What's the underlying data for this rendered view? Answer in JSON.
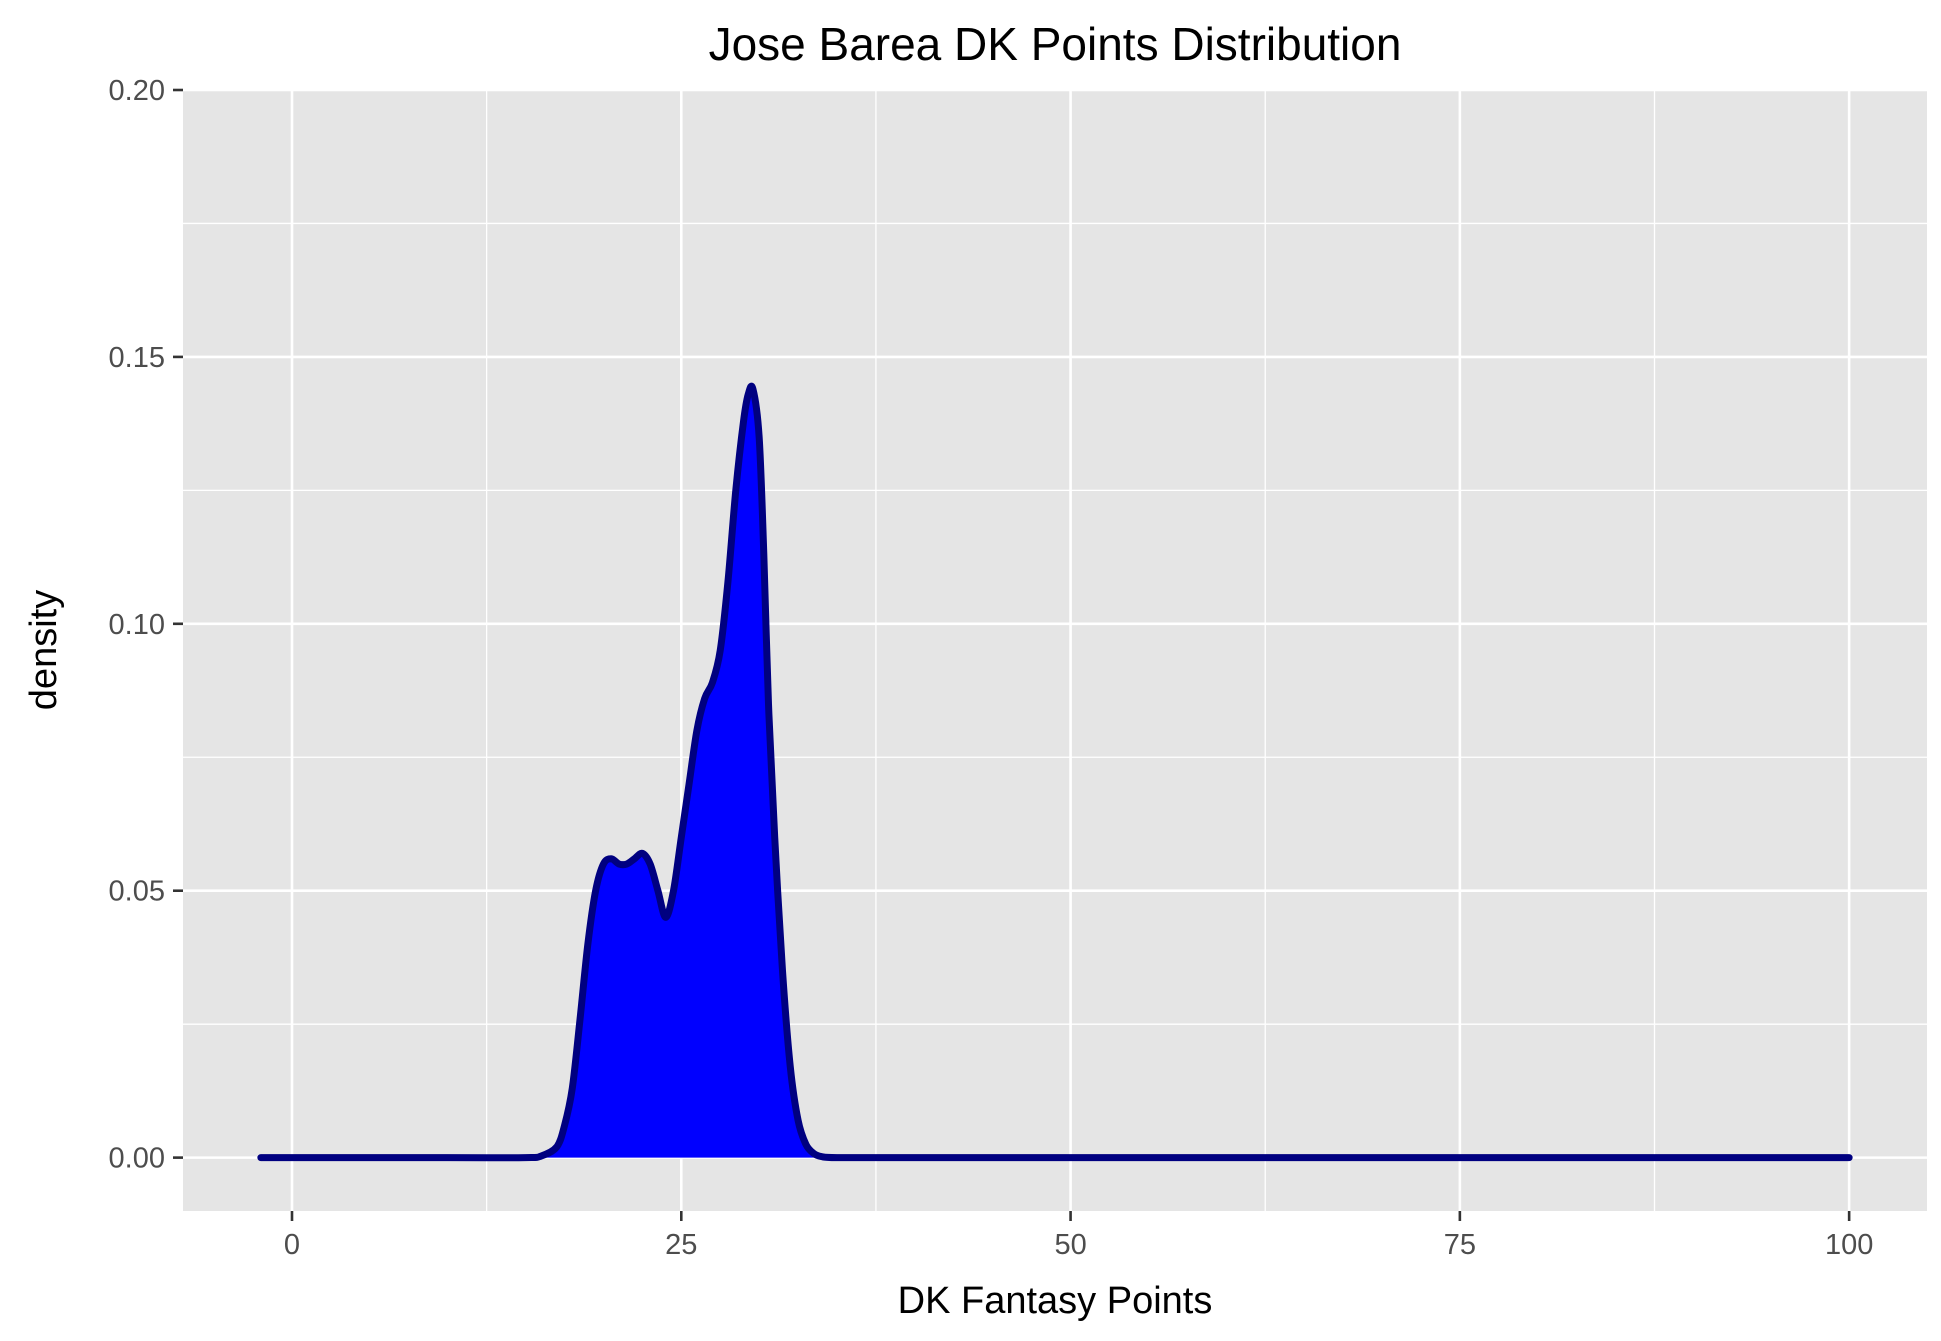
{
  "chart_data": {
    "type": "area",
    "title": "Jose Barea DK Points Distribution",
    "xlabel": "DK Fantasy Points",
    "ylabel": "density",
    "xlim": [
      -7,
      105
    ],
    "ylim": [
      -0.01,
      0.2
    ],
    "x_ticks": [
      0,
      25,
      50,
      75,
      100
    ],
    "y_ticks": [
      0.0,
      0.05,
      0.1,
      0.15,
      0.2
    ],
    "x_tick_labels": [
      "0",
      "25",
      "50",
      "75",
      "100"
    ],
    "y_tick_labels": [
      "0.00",
      "0.05",
      "0.10",
      "0.15",
      "0.20"
    ],
    "grid": true,
    "legend": "none",
    "colors": {
      "fill": "#0000ff",
      "line": "#000080",
      "panel": "#e5e5e5",
      "grid": "#ffffff"
    },
    "series": [
      {
        "x": [
          -2,
          10,
          15,
          16,
          17,
          17.5,
          18,
          18.5,
          19,
          19.5,
          20,
          20.5,
          21,
          21.5,
          22,
          22.5,
          23,
          23.5,
          24,
          24.5,
          25,
          25.5,
          26,
          26.5,
          27,
          27.5,
          28,
          28.5,
          29,
          29.3,
          29.6,
          30,
          30.3,
          30.6,
          31,
          31.5,
          32,
          32.5,
          33,
          33.5,
          34,
          35,
          40,
          60,
          100
        ],
        "y": [
          0,
          0,
          0,
          0.0003,
          0.002,
          0.006,
          0.013,
          0.026,
          0.04,
          0.05,
          0.055,
          0.056,
          0.055,
          0.055,
          0.056,
          0.057,
          0.055,
          0.05,
          0.045,
          0.05,
          0.06,
          0.07,
          0.08,
          0.086,
          0.089,
          0.095,
          0.108,
          0.125,
          0.138,
          0.143,
          0.144,
          0.135,
          0.113,
          0.085,
          0.06,
          0.035,
          0.017,
          0.007,
          0.0025,
          0.0008,
          0.0002,
          0,
          0,
          0,
          0
        ]
      }
    ]
  }
}
